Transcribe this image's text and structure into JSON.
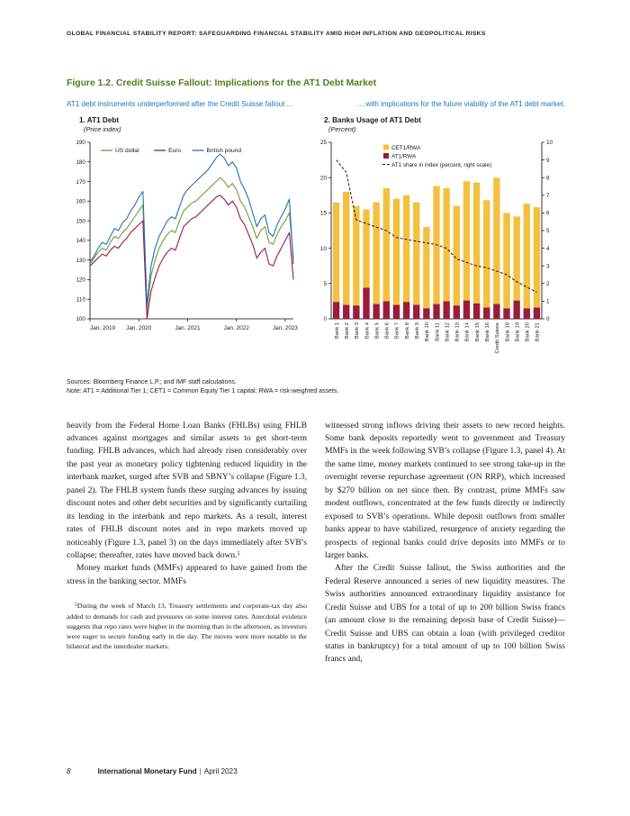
{
  "page": {
    "header": "GLOBAL FINANCIAL STABILITY REPORT: SAFEGUARDING FINANCIAL STABILITY AMID HIGH INFLATION AND GEOPOLITICAL RISKS",
    "footer": {
      "page_number": "8",
      "publisher": "International Monetary Fund",
      "separator": "|",
      "date": "April 2023"
    }
  },
  "figure": {
    "title": "Figure 1.2. Credit Suisse Fallout: Implications for the AT1 Debt Market",
    "subtitle_left": "AT1 debt instruments underperformed after the Credit Suisse fallout ...",
    "subtitle_right": "... with implications for the future viability of the AT1 debt market.",
    "sources": "Sources: Bloomberg Finance L.P.; and IMF staff calculations.",
    "note": "Note: AT1 = Additional Tier 1; CET1 = Common Equity Tier 1 capital; RWA = risk-weighted assets."
  },
  "chart_data": [
    {
      "type": "line",
      "panel_label": "1. AT1 Debt",
      "unit_label": "(Price index)",
      "ylim": [
        100,
        190
      ],
      "ytick_interval": 10,
      "x_start": "Jan. 2019",
      "x_end": "Mar. 2023",
      "x_tick_labels": [
        "Jan. 2019",
        "Jan. 2020",
        "Jan. 2021",
        "Jan. 2022",
        "Jan. 2023"
      ],
      "x_tick_positions": [
        0,
        12,
        24,
        36,
        48
      ],
      "legend_position": "top-left-inside",
      "grid": false,
      "series": [
        {
          "name": "US dollar",
          "color": "#6f9b3c",
          "values": [
            128,
            131,
            134,
            136,
            135,
            139,
            142,
            141,
            144,
            146,
            149,
            152,
            155,
            158,
            104,
            122,
            130,
            136,
            140,
            143,
            145,
            144,
            150,
            155,
            157,
            159,
            160,
            162,
            164,
            166,
            168,
            170,
            172,
            170,
            167,
            169,
            166,
            160,
            157,
            152,
            147,
            141,
            145,
            147,
            139,
            138,
            143,
            147,
            150,
            154,
            131
          ]
        },
        {
          "name": "Euro",
          "color": "#9b1b3c",
          "values": [
            127,
            129,
            131,
            133,
            132,
            135,
            137,
            136,
            139,
            141,
            144,
            146,
            148,
            150,
            100,
            114,
            121,
            127,
            131,
            134,
            136,
            135,
            141,
            147,
            149,
            151,
            152,
            154,
            156,
            158,
            160,
            162,
            163,
            161,
            158,
            160,
            157,
            151,
            148,
            143,
            138,
            131,
            134,
            136,
            128,
            127,
            132,
            136,
            140,
            144,
            120
          ]
        },
        {
          "name": "British pound",
          "color": "#2271b3",
          "values": [
            129,
            132,
            136,
            139,
            138,
            142,
            146,
            145,
            149,
            151,
            155,
            158,
            162,
            165,
            107,
            127,
            136,
            142,
            146,
            150,
            152,
            151,
            157,
            163,
            166,
            168,
            170,
            172,
            174,
            176,
            179,
            182,
            184,
            182,
            178,
            180,
            177,
            170,
            166,
            161,
            154,
            147,
            151,
            153,
            144,
            142,
            148,
            152,
            156,
            161,
            128
          ]
        }
      ]
    },
    {
      "type": "bar",
      "panel_label": "2. Banks Usage of AT1 Debt",
      "unit_label": "(Percent)",
      "stacked": true,
      "ylim_left": [
        0,
        25
      ],
      "ylim_right": [
        0,
        10
      ],
      "grid": false,
      "categories": [
        "Bank 1",
        "Bank 2",
        "Bank 3",
        "Bank 4",
        "Bank 5",
        "Bank 6",
        "Bank 7",
        "Bank 8",
        "Bank 9",
        "Bank 10",
        "Bank 11",
        "Bank 12",
        "Bank 13",
        "Bank 14",
        "Bank 15",
        "Bank 16",
        "Credit Suisse",
        "Bank 18",
        "Bank 19",
        "Bank 20",
        "Bank 21"
      ],
      "series": [
        {
          "name": "CET1/RWA",
          "color": "#f3c13f",
          "role": "bar-top",
          "values": [
            14.1,
            16.0,
            14.1,
            11.1,
            14.4,
            16.0,
            15.0,
            15.1,
            14.5,
            11.5,
            16.7,
            16.0,
            14.1,
            16.9,
            17.1,
            15.2,
            17.9,
            13.5,
            11.9,
            14.8,
            14.2
          ]
        },
        {
          "name": "AT1/RWA",
          "color": "#9b1b3c",
          "role": "bar-bottom",
          "values": [
            2.4,
            2.0,
            1.9,
            4.4,
            2.1,
            2.5,
            2.0,
            2.4,
            2.0,
            1.5,
            2.1,
            2.5,
            1.9,
            2.6,
            2.2,
            1.6,
            2.1,
            1.5,
            2.6,
            1.5,
            1.6
          ]
        },
        {
          "name": "AT1 share in index (percent, right scale)",
          "color": "#1a1a1a",
          "role": "dashed-line-right-axis",
          "values": [
            9.0,
            8.3,
            5.6,
            5.4,
            5.2,
            5.0,
            4.6,
            4.5,
            4.4,
            4.3,
            4.2,
            4.0,
            3.4,
            3.2,
            3.0,
            2.9,
            2.7,
            2.5,
            2.1,
            1.8,
            1.5
          ]
        }
      ]
    }
  ],
  "body": {
    "left_paragraphs": [
      "heavily from the Federal Home Loan Banks (FHLBs) using FHLB advances against mortgages and similar assets to get short-term funding. FHLB advances, which had already risen considerably over the past year as monetary policy tightening reduced liquidity in the interbank market, surged after SVB and SBNY’s collapse (Figure 1.3, panel 2). The FHLB system funds these surging advances by issuing discount notes and other debt securities and by significantly curtailing its lending in the interbank and repo markets. As a result, interest rates of FHLB discount notes and in repo markets moved up noticeably (Figure 1.3, panel 3) on the days immediately after SVB’s collapse; thereafter, rates have moved back down.⁵",
      "Money market funds (MMFs) appeared to have gained from the stress in the banking sector. MMFs"
    ],
    "footnote": "⁵During the week of March 13, Treasury settlements and corporate-tax day also added to demands for cash and pressures on some interest rates. Anecdotal evidence suggests that repo rates were higher in the morning than in the afternoon, as investors were eager to secure funding early in the day. The moves were more notable in the bilateral and the interdealer markets.",
    "right_paragraphs": [
      "witnessed strong inflows driving their assets to new record heights. Some bank deposits reportedly went to government and Treasury MMFs in the week following SVB’s collapse (Figure 1.3, panel 4). At the same time, money markets continued to see strong take-up in the overnight reverse repurchase agreement (ON RRP), which increased by $270 billion on net since then. By contrast, prime MMFs saw modest outflows, concentrated at the few funds directly or indirectly exposed to SVB’s operations. While deposit outflows from smaller banks appear to have stabilized, resurgence of anxiety regarding the prospects of regional banks could drive deposits into MMFs or to larger banks.",
      "After the Credit Suisse fallout, the Swiss authorities and the Federal Reserve announced a series of new liquidity measures. The Swiss authorities announced extraordinary liquidity assistance for Credit Suisse and UBS for a total of up to 200 billion Swiss francs (an amount close to the remaining deposit base of Credit Suisse)—Credit Suisse and UBS can obtain a loan (with privileged creditor status in bankruptcy) for a total amount of up to 100 billion Swiss francs and,"
    ]
  },
  "colors": {
    "title_green": "#507d1f",
    "subtitle_blue": "#1577bc",
    "line_green": "#6f9b3c",
    "line_maroon": "#9b1b3c",
    "line_blue": "#2271b3",
    "bar_yellow": "#f3c13f",
    "bar_maroon": "#9b1b3c",
    "dash_black": "#1a1a1a"
  }
}
